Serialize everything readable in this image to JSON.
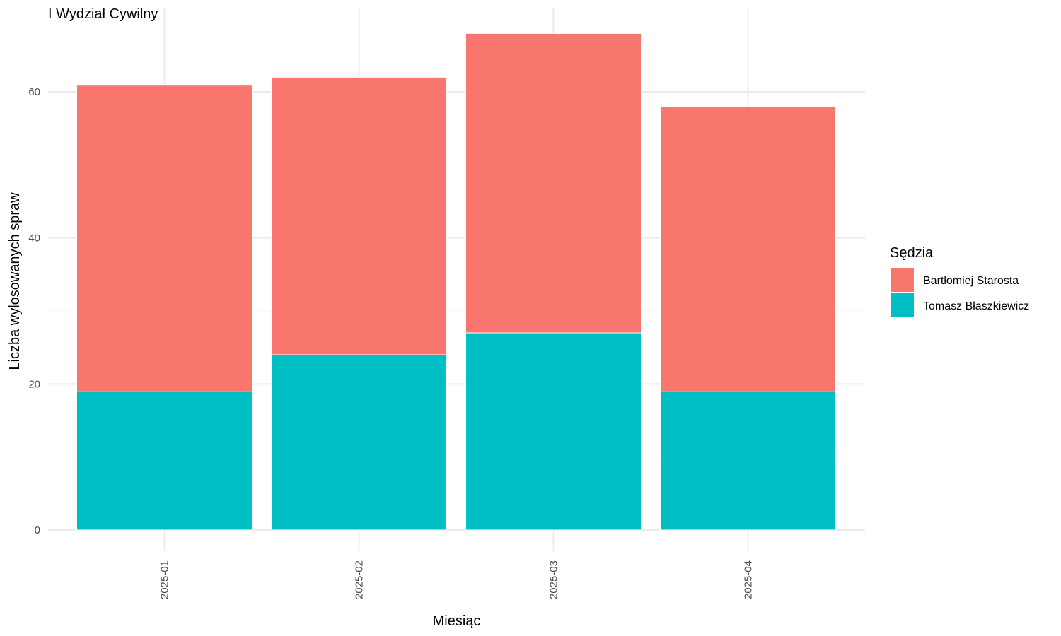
{
  "chart_data": {
    "type": "bar",
    "stacked": true,
    "title": "I Wydział Cywilny",
    "xlabel": "Miesiąc",
    "ylabel": "Liczba wylosowanych spraw",
    "categories": [
      "2025-01",
      "2025-02",
      "2025-03",
      "2025-04"
    ],
    "series": [
      {
        "name": "Tomasz Błaszkiewicz",
        "values": [
          19,
          24,
          27,
          19
        ],
        "color": "#00BFC4"
      },
      {
        "name": "Bartłomiej Starosta",
        "values": [
          42,
          38,
          41,
          39
        ],
        "color": "#F8766D"
      }
    ],
    "totals": [
      61,
      62,
      68,
      58
    ],
    "ylim": [
      0,
      70
    ],
    "yticks": [
      0,
      20,
      40,
      60
    ],
    "grid": true,
    "legend": {
      "title": "Sędzia",
      "position": "right",
      "entries": [
        "Bartłomiej Starosta",
        "Tomasz Błaszkiewicz"
      ]
    }
  }
}
